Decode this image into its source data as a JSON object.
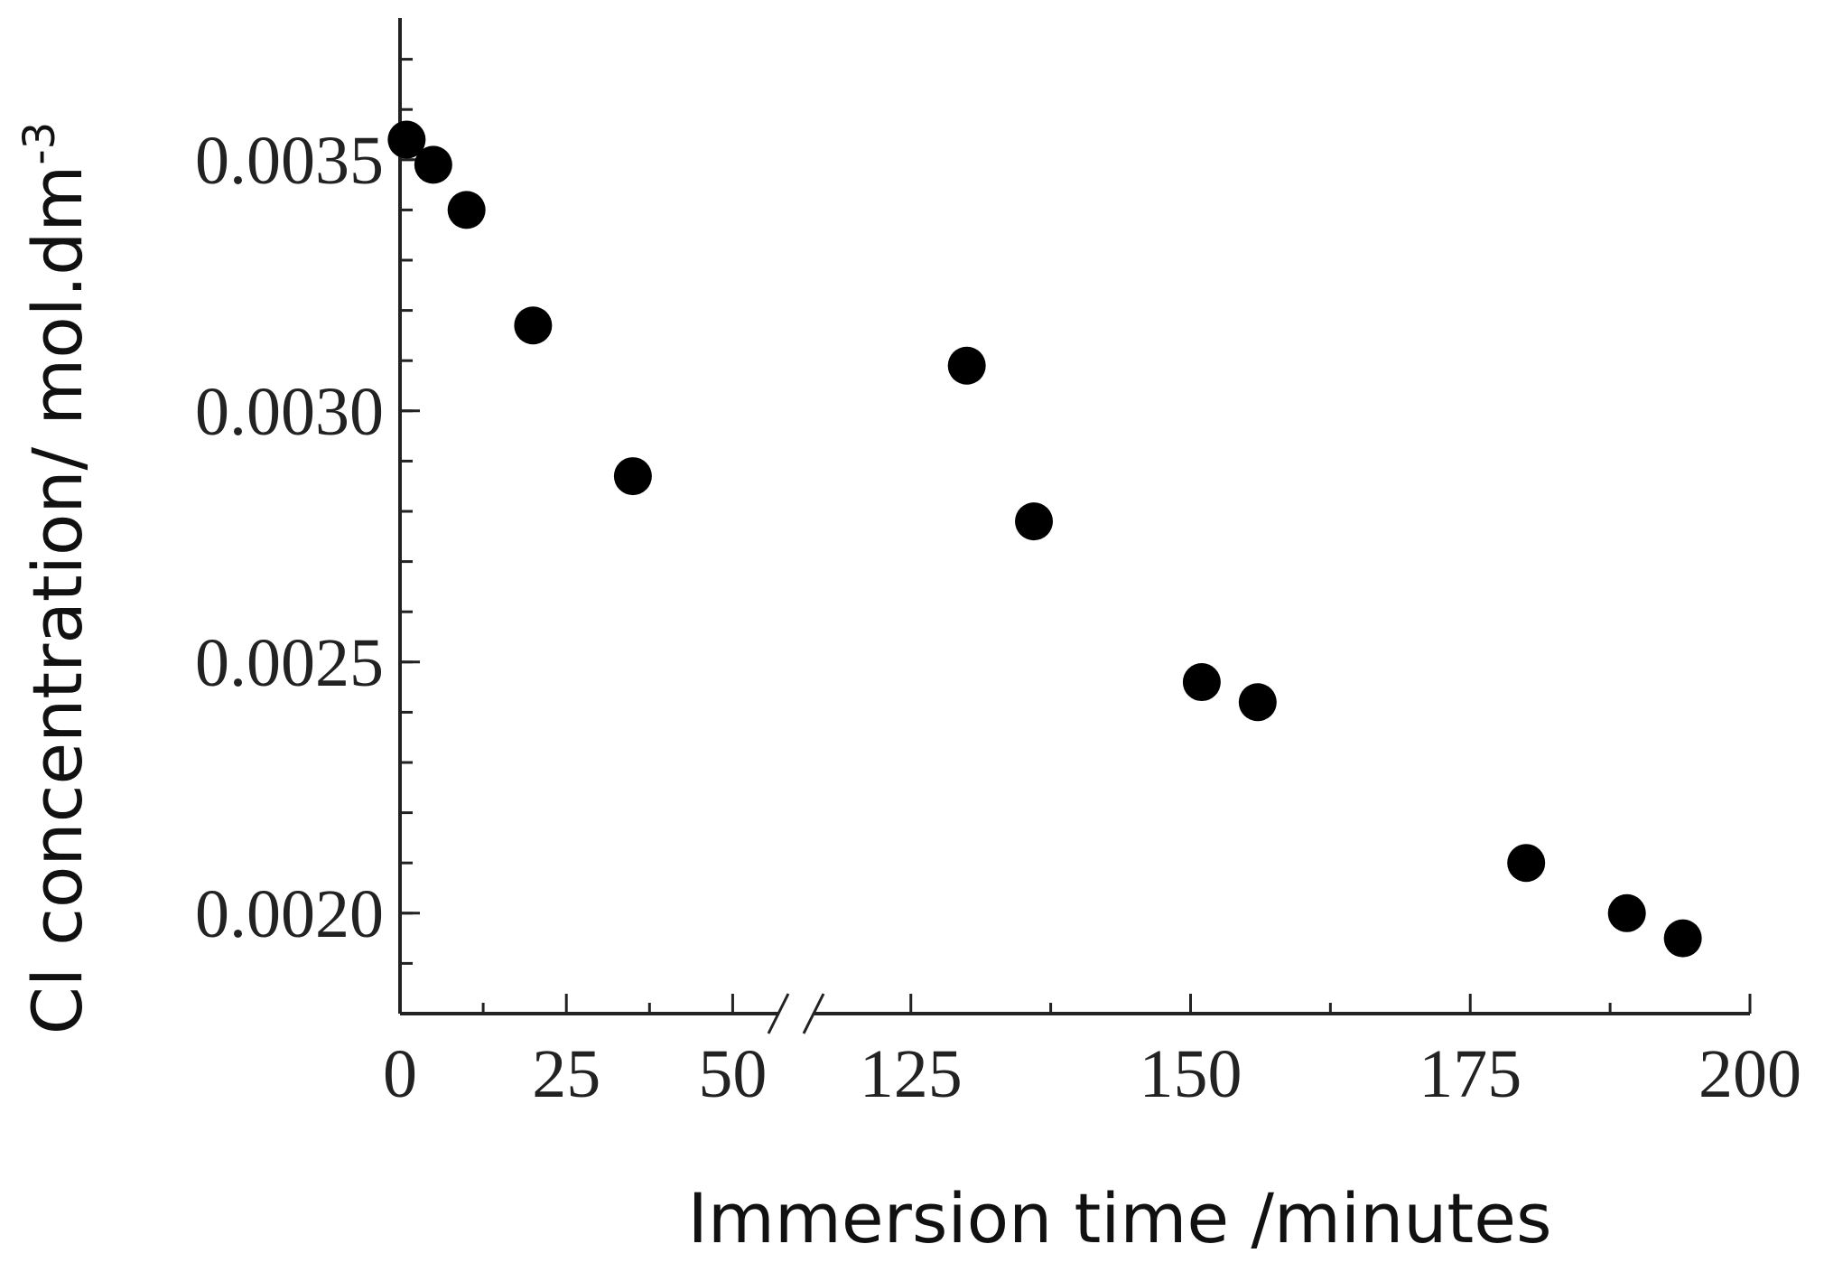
{
  "chart_data": {
    "type": "scatter",
    "title": "",
    "xlabel": "Immersion time /minutes",
    "ylabel": "Cl concentration/ mol.dm",
    "ylabel_superscript": "-3",
    "x_segments": [
      {
        "range": [
          0,
          57
        ],
        "ticks": [
          0,
          25,
          50
        ]
      },
      {
        "range": [
          118,
          200
        ],
        "ticks": [
          125,
          150,
          175,
          200
        ]
      }
    ],
    "ylim": [
      0.0018,
      0.0038
    ],
    "y_ticks": [
      "0.0020",
      "0.0025",
      "0.0030",
      "0.0035"
    ],
    "axis_break": "x",
    "grid": false,
    "legend": "none",
    "marker_color": "#000000",
    "series": [
      {
        "x": [
          1,
          5,
          10,
          20,
          35,
          130,
          136,
          151,
          156,
          180,
          189,
          194
        ],
        "y": [
          0.00354,
          0.00349,
          0.0034,
          0.00317,
          0.00287,
          0.00309,
          0.00278,
          0.00246,
          0.00242,
          0.0021,
          0.002,
          0.00195
        ]
      }
    ]
  }
}
